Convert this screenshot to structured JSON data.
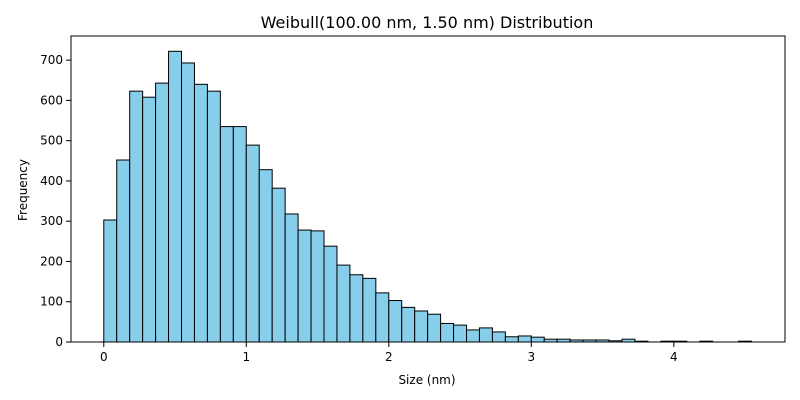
{
  "chart_data": {
    "type": "bar",
    "title": "Weibull(100.00 nm, 1.50 nm) Distribution",
    "xlabel": "Size (nm)",
    "ylabel": "Frequency",
    "xlim": [
      -0.23,
      4.78
    ],
    "ylim": [
      0,
      760
    ],
    "grid": false,
    "bar_color": "#87CEEB",
    "edge_color": "#000000",
    "xticks": [
      0,
      1,
      2,
      3,
      4
    ],
    "yticks": [
      0,
      100,
      200,
      300,
      400,
      500,
      600,
      700
    ],
    "bin_width": 0.0909,
    "bin_start": 0.0,
    "values": [
      303,
      452,
      623,
      608,
      643,
      722,
      693,
      640,
      623,
      535,
      535,
      489,
      428,
      382,
      318,
      278,
      276,
      238,
      191,
      167,
      158,
      122,
      103,
      86,
      77,
      69,
      46,
      42,
      30,
      35,
      25,
      13,
      15,
      12,
      7,
      7,
      5,
      5,
      5,
      3,
      7,
      2,
      0,
      2,
      2,
      0,
      2,
      0,
      0,
      2
    ]
  }
}
